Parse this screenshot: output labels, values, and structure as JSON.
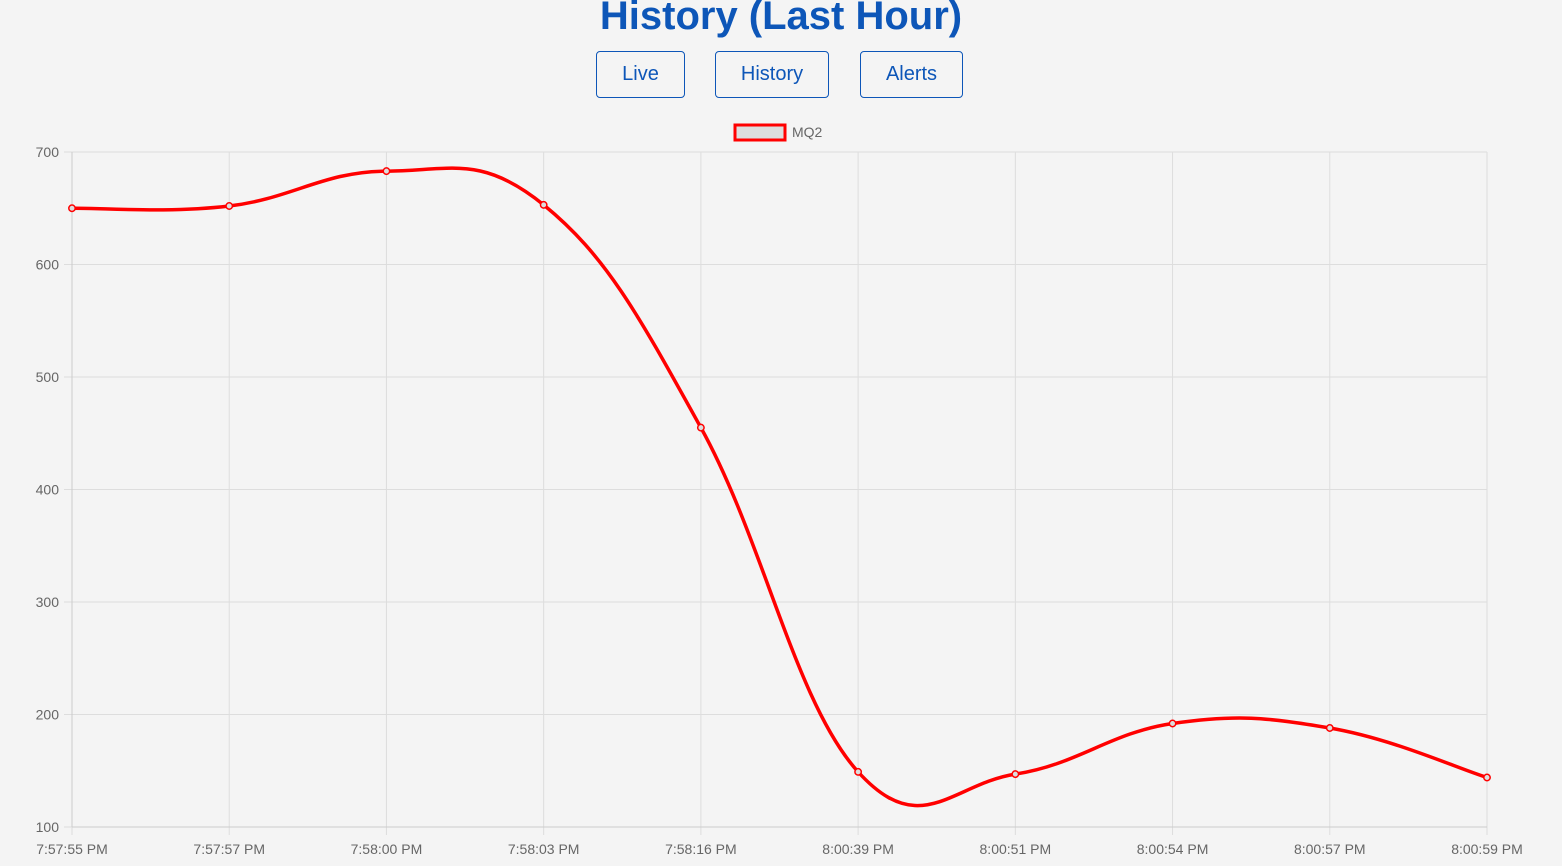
{
  "header": {
    "title": "History (Last Hour)"
  },
  "nav": {
    "live_label": "Live",
    "history_label": "History",
    "alerts_label": "Alerts"
  },
  "colors": {
    "accent": "#0d56b8",
    "series_line": "#ff0000",
    "legend_fill": "#dddddd",
    "background": "#f4f4f4"
  },
  "chart_data": {
    "type": "line",
    "categories": [
      "7:57:55 PM",
      "7:57:57 PM",
      "7:58:00 PM",
      "7:58:03 PM",
      "7:58:16 PM",
      "8:00:39 PM",
      "8:00:51 PM",
      "8:00:54 PM",
      "8:00:57 PM",
      "8:00:59 PM"
    ],
    "series": [
      {
        "name": "MQ2",
        "values": [
          650,
          652,
          683,
          653,
          455,
          149,
          147,
          192,
          188,
          144
        ]
      }
    ],
    "ylim": [
      100,
      700
    ],
    "yticks": [
      100,
      200,
      300,
      400,
      500,
      600,
      700
    ],
    "title": "",
    "xlabel": "",
    "ylabel": "",
    "grid": true,
    "legend": "top-center"
  }
}
